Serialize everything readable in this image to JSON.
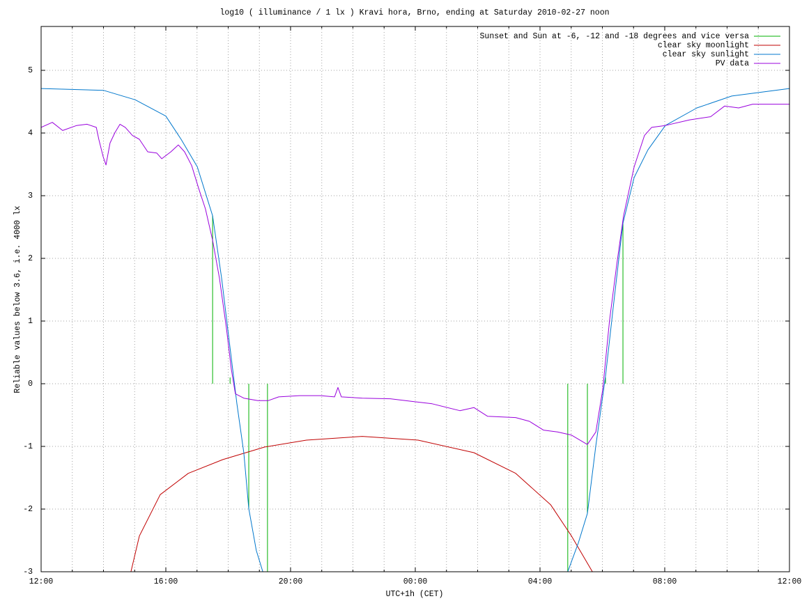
{
  "chart_data": {
    "type": "line",
    "title": "log10 ( illuminance / 1 lx ) Kravi hora, Brno, ending at Saturday 2010-02-27 noon",
    "x_label": "UTC+1h (CET)",
    "y_label": "Reliable values below 3.6, i.e. 4000 lx",
    "xlim": [
      0,
      24
    ],
    "xticks": [
      {
        "value": 0,
        "label": "12:00"
      },
      {
        "value": 4,
        "label": "16:00"
      },
      {
        "value": 8,
        "label": "20:00"
      },
      {
        "value": 12,
        "label": "00:00"
      },
      {
        "value": 16,
        "label": "04:00"
      },
      {
        "value": 20,
        "label": "08:00"
      },
      {
        "value": 24,
        "label": "12:00"
      }
    ],
    "x_minor_ticks": [
      1,
      2,
      3,
      5,
      6,
      7,
      9,
      10,
      11,
      13,
      14,
      15,
      17,
      18,
      19,
      21,
      22,
      23
    ],
    "ylim": [
      -3,
      5.7
    ],
    "yticks": [
      -3,
      -2,
      -1,
      0,
      1,
      2,
      3,
      4,
      5
    ],
    "grid": true,
    "legend": "top-right",
    "series": [
      {
        "name": "Sunset and Sun at -6, -12 and -18 degrees and vice versa",
        "color": "#00b000",
        "style": "impulses",
        "x": [
          5.5,
          6.06,
          6.66,
          7.26,
          16.89,
          17.52,
          18.1,
          18.66
        ],
        "values": [
          2.68,
          0.1,
          -2.0,
          -3,
          -3,
          -2.07,
          0.1,
          2.56
        ]
      },
      {
        "name": "clear sky moonlight",
        "color": "#c00000",
        "style": "lines",
        "x": [
          2.88,
          3.15,
          3.82,
          4.72,
          5.83,
          7.17,
          8.51,
          10.3,
          12.09,
          13.88,
          15.22,
          16.34,
          17.01,
          17.68
        ],
        "values": [
          -3,
          -2.43,
          -1.77,
          -1.43,
          -1.21,
          -1.01,
          -0.9,
          -0.84,
          -0.9,
          -1.1,
          -1.43,
          -1.93,
          -2.43,
          -3
        ]
      },
      {
        "name": "clear sky sunlight",
        "color": "#0077cc",
        "style": "lines",
        "x": [
          0,
          2.01,
          3.02,
          4.0,
          4.49,
          5.01,
          5.5,
          5.79,
          6.06,
          6.28,
          6.5,
          6.66,
          6.9,
          7.11,
          12,
          16.89,
          17.23,
          17.52,
          17.79,
          18.1,
          18.35,
          18.66,
          19.02,
          19.46,
          20.02,
          21.03,
          22.15,
          24
        ],
        "values": [
          4.71,
          4.68,
          4.53,
          4.27,
          3.9,
          3.46,
          2.68,
          1.68,
          0.57,
          -0.32,
          -1.1,
          -1.99,
          -2.66,
          -3,
          null,
          -3,
          -2.54,
          -2.07,
          -0.99,
          0.12,
          1.23,
          2.56,
          3.29,
          3.73,
          4.12,
          4.4,
          4.59,
          4.71
        ]
      },
      {
        "name": "PV data",
        "color": "#9900dd",
        "style": "lines",
        "x": [
          0,
          0.36,
          0.69,
          1.14,
          1.47,
          1.77,
          1.85,
          1.99,
          2.08,
          2.21,
          2.37,
          2.53,
          2.7,
          2.93,
          3.15,
          3.42,
          3.71,
          3.87,
          4.16,
          4.4,
          4.6,
          4.83,
          5.05,
          5.27,
          5.5,
          5.72,
          5.94,
          6.1,
          6.23,
          6.5,
          6.95,
          7.28,
          7.62,
          8.29,
          8.96,
          9.41,
          9.52,
          9.63,
          10.3,
          11.2,
          11.87,
          12.54,
          13.43,
          13.88,
          14.32,
          15.22,
          15.66,
          16.11,
          16.56,
          17.01,
          17.52,
          17.79,
          18.01,
          18.23,
          18.46,
          18.68,
          19.02,
          19.35,
          19.58,
          20.02,
          20.8,
          21.47,
          21.92,
          22.37,
          22.82,
          23.26,
          24.0
        ],
        "values": [
          4.09,
          4.17,
          4.04,
          4.12,
          4.14,
          4.09,
          3.9,
          3.62,
          3.49,
          3.84,
          4.01,
          4.14,
          4.09,
          3.96,
          3.9,
          3.7,
          3.68,
          3.59,
          3.7,
          3.81,
          3.7,
          3.48,
          3.12,
          2.79,
          2.29,
          1.68,
          0.9,
          0.23,
          -0.16,
          -0.23,
          -0.27,
          -0.27,
          -0.21,
          -0.19,
          -0.19,
          -0.21,
          -0.06,
          -0.21,
          -0.23,
          -0.24,
          -0.28,
          -0.32,
          -0.43,
          -0.38,
          -0.52,
          -0.54,
          -0.6,
          -0.74,
          -0.77,
          -0.82,
          -0.97,
          -0.77,
          -0.1,
          1.01,
          1.9,
          2.68,
          3.46,
          3.96,
          4.09,
          4.12,
          4.21,
          4.26,
          4.43,
          4.4,
          4.46,
          4.46,
          4.46
        ]
      }
    ]
  }
}
